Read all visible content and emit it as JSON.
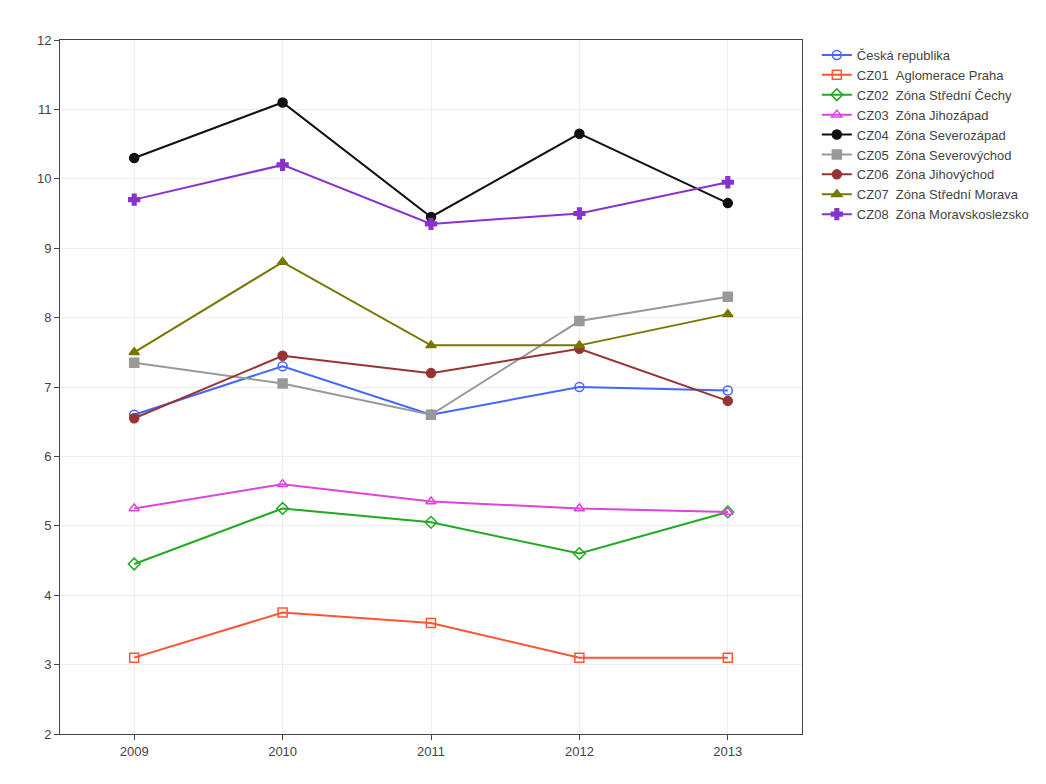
{
  "chart_data": {
    "type": "line",
    "x": [
      2009,
      2010,
      2011,
      2012,
      2013
    ],
    "series": [
      {
        "name": "Česká republika",
        "color": "#4466ff",
        "marker": "circle-open",
        "values": [
          6.6,
          7.3,
          6.6,
          7.0,
          6.95
        ]
      },
      {
        "name": "CZ01  Aglomerace Praha",
        "color": "#ff5533",
        "marker": "square-open",
        "values": [
          3.1,
          3.75,
          3.6,
          3.1,
          3.1
        ]
      },
      {
        "name": "CZ02  Zóna Střední Čechy",
        "color": "#22aa22",
        "marker": "diamond-open",
        "values": [
          4.45,
          5.25,
          5.05,
          4.6,
          5.2
        ]
      },
      {
        "name": "CZ03  Zóna Jihozápad",
        "color": "#dd44dd",
        "marker": "triangle-up-open",
        "values": [
          5.25,
          5.6,
          5.35,
          5.25,
          5.2
        ]
      },
      {
        "name": "CZ04  Zóna Severozápad",
        "color": "#111111",
        "marker": "circle",
        "values": [
          10.3,
          11.1,
          9.45,
          10.65,
          9.65
        ]
      },
      {
        "name": "CZ05  Zóna Severovýchod",
        "color": "#999999",
        "marker": "square",
        "values": [
          7.35,
          7.05,
          6.6,
          7.95,
          8.3
        ]
      },
      {
        "name": "CZ06  Zóna Jihovýchod",
        "color": "#993333",
        "marker": "circle",
        "values": [
          6.55,
          7.45,
          7.2,
          7.55,
          6.8
        ]
      },
      {
        "name": "CZ07  Zóna Střední Morava",
        "color": "#777700",
        "marker": "triangle-up",
        "values": [
          7.5,
          8.8,
          7.6,
          7.6,
          8.05
        ]
      },
      {
        "name": "CZ08  Zóna Moravskoslezsko",
        "color": "#8833cc",
        "marker": "cross",
        "values": [
          9.7,
          10.2,
          9.35,
          9.5,
          9.95
        ]
      }
    ],
    "xlim": [
      2008.5,
      2013.5
    ],
    "xticks": [
      2009,
      2010,
      2011,
      2012,
      2013
    ],
    "ylim": [
      2,
      12
    ],
    "yticks": [
      2,
      3,
      4,
      5,
      6,
      7,
      8,
      9,
      10,
      11,
      12
    ],
    "grid": true,
    "legend": "right"
  }
}
